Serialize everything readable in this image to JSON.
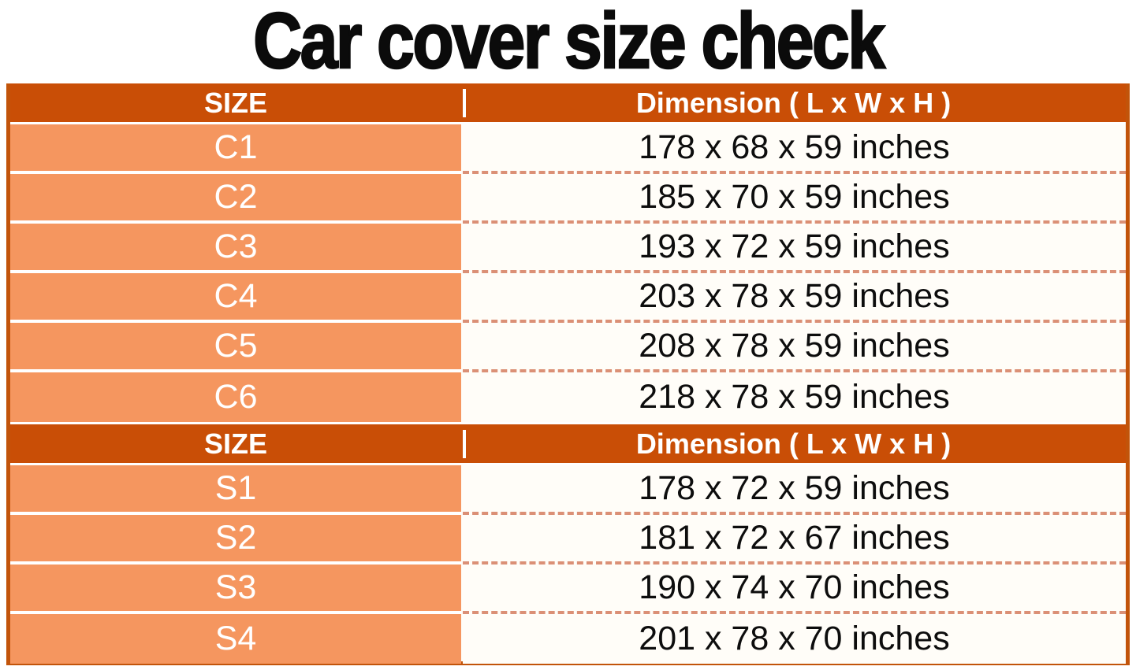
{
  "title": "Car cover size check",
  "colors": {
    "header_bg": "#C94E06",
    "row_bg": "#F5965F",
    "table_border": "#C2540A",
    "dashed_separator": "#DB9076",
    "header_text": "#FFFFFF",
    "cell_text": "#0D0D0D",
    "title_color": "#0B0B0B"
  },
  "tables": [
    {
      "headers": {
        "size_label": "SIZE",
        "dimension_label": "Dimension ( L x W x H )"
      },
      "rows": [
        {
          "size": "C1",
          "dimension": "178 x 68 x 59 inches"
        },
        {
          "size": "C2",
          "dimension": "185 x 70 x 59 inches"
        },
        {
          "size": "C3",
          "dimension": "193 x 72 x 59 inches"
        },
        {
          "size": "C4",
          "dimension": "203 x 78 x 59 inches"
        },
        {
          "size": "C5",
          "dimension": "208 x 78 x 59 inches"
        },
        {
          "size": "C6",
          "dimension": "218 x 78 x 59 inches"
        }
      ]
    },
    {
      "headers": {
        "size_label": "SIZE",
        "dimension_label": "Dimension ( L x W x H )"
      },
      "rows": [
        {
          "size": "S1",
          "dimension": "178 x 72 x 59 inches"
        },
        {
          "size": "S2",
          "dimension": "181 x 72 x 67 inches"
        },
        {
          "size": "S3",
          "dimension": "190 x 74 x 70 inches"
        },
        {
          "size": "S4",
          "dimension": "201 x 78 x 70 inches"
        }
      ]
    }
  ],
  "chart_data": [
    {
      "type": "table",
      "title": "Car cover size check",
      "columns": [
        "SIZE",
        "Dimension ( L x W x H )"
      ],
      "rows": [
        [
          "C1",
          "178 x 68 x 59 inches"
        ],
        [
          "C2",
          "185 x 70 x 59 inches"
        ],
        [
          "C3",
          "193 x 72 x 59 inches"
        ],
        [
          "C4",
          "203 x 78 x 59 inches"
        ],
        [
          "C5",
          "208 x 78 x 59 inches"
        ],
        [
          "C6",
          "218 x 78 x 59 inches"
        ]
      ]
    },
    {
      "type": "table",
      "title": "Car cover size check",
      "columns": [
        "SIZE",
        "Dimension ( L x W x H )"
      ],
      "rows": [
        [
          "S1",
          "178 x 72 x 59 inches"
        ],
        [
          "S2",
          "181 x 72 x 67 inches"
        ],
        [
          "S3",
          "190 x 74 x 70 inches"
        ],
        [
          "S4",
          "201 x 78 x 70 inches"
        ]
      ]
    }
  ]
}
